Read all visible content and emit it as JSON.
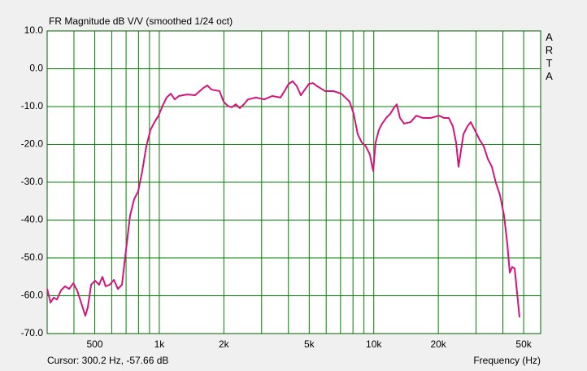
{
  "chart_data": {
    "type": "line",
    "title": "FR Magnitude dB V/V (smoothed 1/24 oct)",
    "side_label": "ARTA",
    "cursor_text": "Cursor: 300.2 Hz, -57.66 dB",
    "x_label": "Frequency (Hz)",
    "log_x": true,
    "grid": true,
    "xlim": [
      300,
      60000
    ],
    "ylim": [
      -70,
      10
    ],
    "xticks": [
      500,
      {
        "value": 1000,
        "label": "1k"
      },
      {
        "value": 2000,
        "label": "2k"
      },
      {
        "value": 5000,
        "label": "5k"
      },
      {
        "value": 10000,
        "label": "10k"
      },
      {
        "value": 20000,
        "label": "20k"
      },
      {
        "value": 50000,
        "label": "50k"
      }
    ],
    "xgrid": [
      400,
      600,
      700,
      800,
      900,
      3000,
      4000,
      6000,
      7000,
      8000,
      9000,
      30000,
      40000
    ],
    "yticks": [
      {
        "value": 10,
        "label": "10.0"
      },
      {
        "value": 0,
        "label": "0.0"
      },
      {
        "value": -10,
        "label": "-10.0"
      },
      {
        "value": -20,
        "label": "-20.0"
      },
      {
        "value": -30,
        "label": "-30.0"
      },
      {
        "value": -40,
        "label": "-40.0"
      },
      {
        "value": -50,
        "label": "-50.0"
      },
      {
        "value": -60,
        "label": "-60.0"
      },
      {
        "value": -70,
        "label": "-70.0"
      }
    ],
    "x": [
      300,
      311,
      322,
      333,
      348,
      363,
      380,
      397,
      414,
      433,
      452,
      464,
      481,
      502,
      524,
      543,
      562,
      587,
      614,
      641,
      670,
      687,
      712,
      731,
      763,
      797,
      833,
      870,
      909,
      950,
      992,
      1036,
      1082,
      1131,
      1181,
      1234,
      1346,
      1469,
      1603,
      1674,
      1749,
      1909,
      1994,
      2083,
      2176,
      2273,
      2374,
      2480,
      2591,
      2827,
      3085,
      3366,
      3673,
      3837,
      4009,
      4188,
      4375,
      4570,
      4774,
      4987,
      5210,
      5441,
      5936,
      6477,
      7068,
      7714,
      8058,
      8418,
      8793,
      9186,
      9594,
      9936,
      10200,
      10560,
      10940,
      11430,
      11940,
      12470,
      12800,
      13250,
      13840,
      14850,
      15780,
      16920,
      18460,
      20150,
      21230,
      22370,
      23380,
      24200,
      24850,
      25510,
      26190,
      27350,
      28320,
      29580,
      31180,
      32570,
      34020,
      35530,
      37120,
      38780,
      40500,
      41950,
      43060,
      44200,
      45380,
      46580,
      47820
    ],
    "series": [
      {
        "color": "#d4147a",
        "values": [
          -58.2,
          -61.8,
          -60.5,
          -61.0,
          -58.6,
          -57.5,
          -58.2,
          -56.7,
          -58.6,
          -62.0,
          -65.3,
          -63.1,
          -57.1,
          -56.0,
          -57.1,
          -55.0,
          -57.5,
          -57.1,
          -55.8,
          -58.2,
          -57.1,
          -51.7,
          -44.2,
          -38.8,
          -34.5,
          -32.4,
          -27.0,
          -20.5,
          -16.2,
          -14.1,
          -12.4,
          -9.8,
          -7.6,
          -6.6,
          -8.1,
          -7.2,
          -6.8,
          -7.0,
          -5.1,
          -4.4,
          -5.5,
          -5.9,
          -8.7,
          -9.8,
          -10.2,
          -9.4,
          -10.4,
          -9.4,
          -8.1,
          -7.6,
          -8.1,
          -7.2,
          -7.6,
          -5.9,
          -4.0,
          -3.3,
          -4.6,
          -7.0,
          -5.5,
          -4.0,
          -3.8,
          -4.6,
          -5.9,
          -5.9,
          -6.6,
          -8.7,
          -11.9,
          -17.3,
          -19.5,
          -20.5,
          -22.7,
          -27.0,
          -19.5,
          -16.2,
          -14.5,
          -13.0,
          -11.9,
          -10.2,
          -9.4,
          -13.0,
          -14.5,
          -14.1,
          -12.4,
          -13.0,
          -13.0,
          -12.4,
          -13.0,
          -13.0,
          -15.2,
          -19.5,
          -25.9,
          -21.6,
          -17.3,
          -15.2,
          -14.1,
          -16.2,
          -18.8,
          -20.5,
          -23.8,
          -25.9,
          -30.2,
          -33.4,
          -38.8,
          -46.3,
          -53.9,
          -52.4,
          -52.8,
          -59.2,
          -65.7
        ]
      }
    ]
  }
}
